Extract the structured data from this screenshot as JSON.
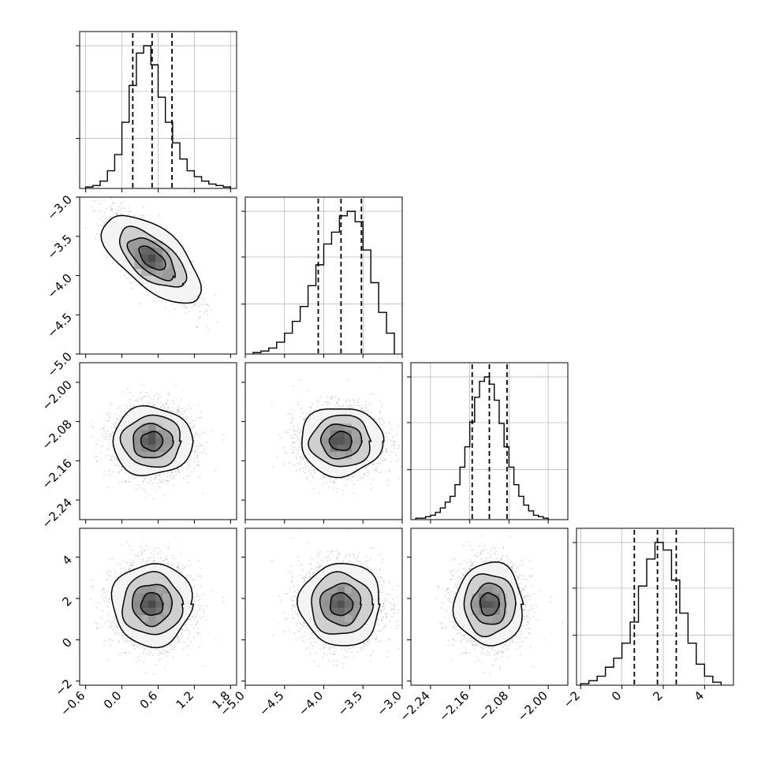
{
  "chart_data": {
    "type": "corner",
    "parameters": [
      {
        "range": [
          -0.7,
          1.9
        ],
        "ticks": [
          -0.6,
          0.0,
          0.6,
          1.2,
          1.8
        ],
        "tick_labels": [
          "−0.6",
          "0.0",
          "0.6",
          "1.2",
          "1.8"
        ],
        "quantiles": [
          0.18,
          0.5,
          0.83
        ],
        "hist": {
          "bin_edges": [
            -0.6,
            -0.48,
            -0.36,
            -0.24,
            -0.12,
            0.0,
            0.12,
            0.24,
            0.36,
            0.48,
            0.6,
            0.72,
            0.84,
            0.96,
            1.08,
            1.2,
            1.32,
            1.44,
            1.56,
            1.68,
            1.8
          ],
          "values": [
            1,
            2,
            5,
            12,
            23,
            45,
            70,
            92,
            97,
            84,
            62,
            45,
            31,
            20,
            12,
            8,
            5,
            3,
            2,
            1
          ]
        }
      },
      {
        "range": [
          -5.0,
          -3.0
        ],
        "ticks": [
          -5.0,
          -4.5,
          -4.0,
          -3.5,
          -3.0
        ],
        "tick_labels": [
          "−5.0",
          "−4.5",
          "−4.0",
          "−3.5",
          "−3.0"
        ],
        "quantiles": [
          -4.07,
          -3.78,
          -3.52
        ],
        "hist": {
          "bin_edges": [
            -4.9,
            -4.8,
            -4.7,
            -4.6,
            -4.5,
            -4.4,
            -4.3,
            -4.2,
            -4.1,
            -4.0,
            -3.9,
            -3.8,
            -3.7,
            -3.6,
            -3.5,
            -3.4,
            -3.3,
            -3.2,
            -3.1
          ],
          "values": [
            1,
            2,
            4,
            8,
            14,
            22,
            32,
            46,
            60,
            74,
            82,
            93,
            96,
            89,
            70,
            48,
            28,
            14
          ]
        }
      },
      {
        "range": [
          -2.28,
          -1.96
        ],
        "ticks": [
          -2.24,
          -2.16,
          -2.08,
          -2.0
        ],
        "tick_labels": [
          "−2.24",
          "−2.16",
          "−2.08",
          "−2.00"
        ],
        "quantiles": [
          -2.155,
          -2.12,
          -2.084
        ],
        "hist": {
          "bin_edges": [
            -2.27,
            -2.26,
            -2.25,
            -2.24,
            -2.23,
            -2.22,
            -2.21,
            -2.2,
            -2.19,
            -2.18,
            -2.17,
            -2.16,
            -2.15,
            -2.14,
            -2.13,
            -2.12,
            -2.11,
            -2.1,
            -2.09,
            -2.08,
            -2.07,
            -2.06,
            -2.05,
            -2.04,
            -2.03,
            -2.02,
            -2.01,
            -2.0
          ],
          "values": [
            1,
            1,
            2,
            3,
            5,
            8,
            12,
            16,
            24,
            36,
            50,
            67,
            84,
            95,
            98,
            93,
            82,
            66,
            50,
            36,
            24,
            16,
            10,
            6,
            3,
            2,
            1
          ]
        }
      },
      {
        "range": [
          -2.2,
          5.4
        ],
        "ticks": [
          -2,
          0,
          2,
          4
        ],
        "tick_labels": [
          "−2",
          "0",
          "2",
          "4"
        ],
        "quantiles": [
          0.6,
          1.72,
          2.63
        ],
        "hist": {
          "bin_edges": [
            -2.0,
            -1.6,
            -1.2,
            -0.8,
            -0.4,
            0.0,
            0.4,
            0.8,
            1.2,
            1.6,
            2.0,
            2.4,
            2.8,
            3.2,
            3.6,
            4.0,
            4.4,
            4.8
          ],
          "values": [
            1,
            3,
            6,
            12,
            18,
            28,
            42,
            66,
            84,
            95,
            90,
            70,
            48,
            28,
            14,
            6,
            2
          ]
        }
      }
    ],
    "pairs": [
      {
        "row": 1,
        "col": 0,
        "mean": [
          0.5,
          -3.78
        ],
        "sd": [
          0.33,
          0.26
        ],
        "corr": -0.75,
        "contour_levels": [
          0.6,
          1.05,
          1.5,
          2.2
        ]
      },
      {
        "row": 2,
        "col": 0,
        "mean": [
          0.5,
          -2.12
        ],
        "sd": [
          0.33,
          0.035
        ],
        "corr": 0.0,
        "contour_levels": [
          0.55,
          1.0,
          1.5,
          2.0
        ]
      },
      {
        "row": 2,
        "col": 1,
        "mean": [
          -3.78,
          -2.12
        ],
        "sd": [
          0.26,
          0.035
        ],
        "corr": 0.0,
        "contour_levels": [
          0.55,
          1.0,
          1.5,
          2.0
        ]
      },
      {
        "row": 3,
        "col": 0,
        "mean": [
          0.5,
          1.72
        ],
        "sd": [
          0.33,
          1.0
        ],
        "corr": 0.0,
        "contour_levels": [
          0.55,
          1.0,
          1.5,
          2.0
        ]
      },
      {
        "row": 3,
        "col": 1,
        "mean": [
          -3.78,
          1.72
        ],
        "sd": [
          0.26,
          1.0
        ],
        "corr": 0.0,
        "contour_levels": [
          0.55,
          1.0,
          1.5,
          2.0
        ]
      },
      {
        "row": 3,
        "col": 2,
        "mean": [
          -2.12,
          1.72
        ],
        "sd": [
          0.035,
          1.0
        ],
        "corr": 0.0,
        "contour_levels": [
          0.55,
          1.0,
          1.5,
          2.0
        ]
      }
    ],
    "axis_titles": [],
    "grid": true,
    "colors": {
      "hist_line": "#000000",
      "quantile_line": "#000000",
      "scatter": "#8c8c8c",
      "density": "#000000",
      "grid": "#b0b0b0"
    }
  }
}
